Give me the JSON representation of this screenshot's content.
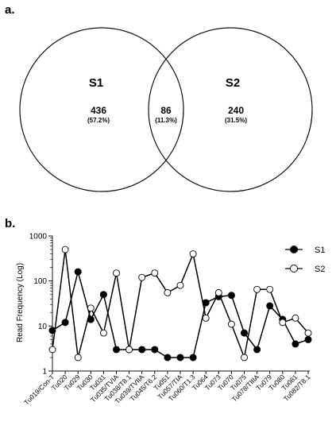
{
  "panel_a": {
    "label": "a.",
    "left_set": {
      "name": "S1",
      "count": "436",
      "pct": "(57.2%)"
    },
    "intersection": {
      "count": "86",
      "pct": "(11.3%)"
    },
    "right_set": {
      "name": "S2",
      "count": "240",
      "pct": "(31.5%)"
    }
  },
  "panel_b": {
    "label": "b."
  },
  "chart_data": {
    "type": "line",
    "ylabel": "Read Frequency (Log)",
    "yscale": "log",
    "ylim": [
      1,
      1000
    ],
    "yticks": [
      "1",
      "10",
      "100",
      "1000"
    ],
    "categories": [
      "Tu019/Con-T",
      "Tu020",
      "Tu029",
      "Tu030",
      "Tu031",
      "Tu035/TVIA",
      "Tu038/T8.1",
      "Tu039/TVIIA",
      "Tu045/T6.2",
      "Tu051",
      "Tu057/TIA",
      "Tu060/T1.3",
      "Tu064",
      "Tu073",
      "Tu070",
      "Tu075",
      "Tu078/TIIIA",
      "Tu079",
      "Tu080",
      "Tu081",
      "Tu082/T8.1"
    ],
    "legend_position": "right",
    "series": [
      {
        "name": "S1",
        "marker": "filled-circle",
        "color": "#000000",
        "values": [
          8,
          12,
          160,
          14,
          50,
          3,
          3,
          3,
          3,
          2,
          2,
          2,
          33,
          45,
          48,
          7,
          3,
          28,
          14,
          4,
          5
        ]
      },
      {
        "name": "S2",
        "marker": "open-circle",
        "color": "#000000",
        "values": [
          3,
          500,
          2,
          25,
          7,
          150,
          3,
          120,
          150,
          55,
          80,
          400,
          15,
          55,
          11,
          2,
          65,
          65,
          12,
          15,
          7
        ]
      }
    ]
  }
}
